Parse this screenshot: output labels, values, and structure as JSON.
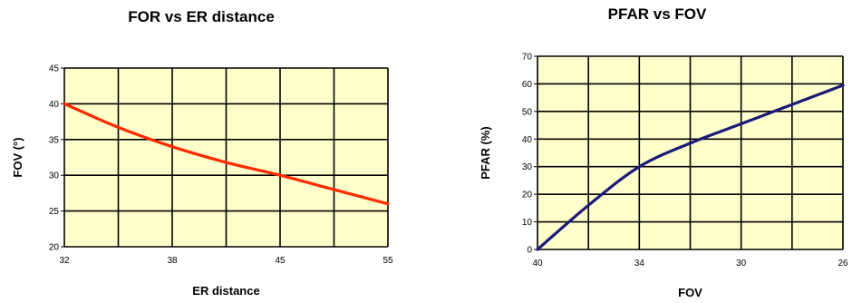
{
  "chart_data": [
    {
      "type": "line",
      "title": "FOR  vs ER  distance",
      "xlabel": "ER distance",
      "ylabel": "FOV (°)",
      "x_ticks": [
        "32",
        "38",
        "45",
        "55"
      ],
      "y_ticks": [
        "20",
        "25",
        "30",
        "35",
        "40",
        "45"
      ],
      "ylim": [
        20,
        45
      ],
      "grid": true,
      "line_color": "#ff2a00",
      "series": [
        {
          "x": [
            0,
            0.5,
            1,
            1.5,
            2,
            2.5,
            3
          ],
          "y": [
            40,
            36.7,
            34,
            31.8,
            30,
            28,
            26
          ]
        }
      ]
    },
    {
      "type": "line",
      "title": "PFAR vs FOV",
      "xlabel": "FOV",
      "ylabel": "PFAR (%)",
      "x_ticks": [
        "40",
        "34",
        "30",
        "26"
      ],
      "y_ticks": [
        "0",
        "10",
        "20",
        "30",
        "40",
        "50",
        "60",
        "70"
      ],
      "ylim": [
        0,
        70
      ],
      "grid": true,
      "line_color": "#1a1a7a",
      "series": [
        {
          "x": [
            0,
            0.5,
            1,
            1.5,
            2,
            2.5,
            3
          ],
          "y": [
            0,
            16,
            30,
            38.5,
            45.5,
            52.5,
            59.5
          ]
        }
      ]
    }
  ]
}
